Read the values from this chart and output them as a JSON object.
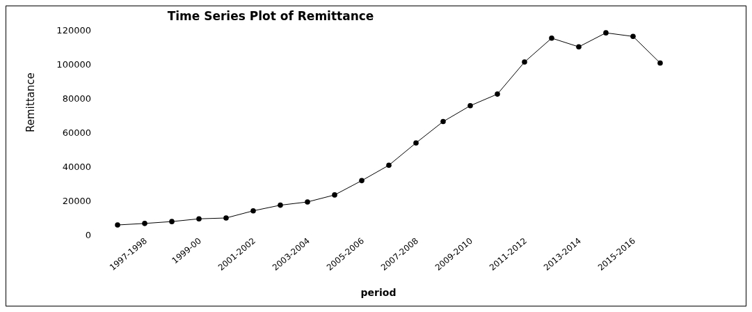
{
  "chart_data": {
    "type": "line",
    "title": "Time Series Plot of Remittance",
    "xlabel": "period",
    "ylabel": "Remittance",
    "categories": [
      null,
      "1997-1998",
      null,
      "1999-00",
      null,
      "2001-2002",
      null,
      "2003-2004",
      null,
      "2005-2006",
      null,
      "2007-2008",
      null,
      "2009-2010",
      null,
      "2011-2012",
      null,
      "2013-2014",
      null,
      "2015-2016",
      null
    ],
    "series": [
      {
        "color": "#000000",
        "values": [
          5700,
          6600,
          7700,
          9300,
          9800,
          14000,
          17300,
          19200,
          23300,
          31700,
          40700,
          53800,
          66300,
          75600,
          82400,
          101200,
          115200,
          110100,
          118300,
          116200,
          100600
        ]
      }
    ],
    "ylim": [
      0,
      120000
    ],
    "yticks": [
      0,
      20000,
      40000,
      60000,
      80000,
      100000,
      120000
    ],
    "grid": false,
    "legend": false,
    "marker": "circle",
    "line_style": "solid"
  }
}
